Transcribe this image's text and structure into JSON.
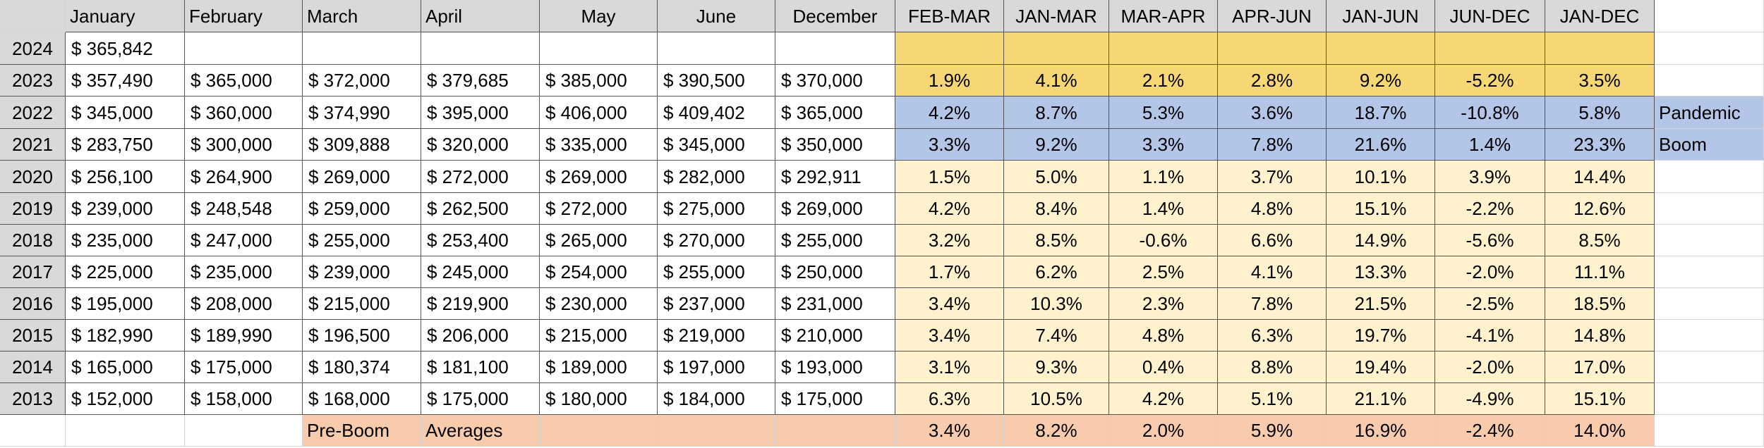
{
  "colors": {
    "header_gray": "#d9d9d9",
    "gold": "#f7d774",
    "blue": "#b4c6e7",
    "light_yellow": "#fff2cc",
    "peach": "#f8cbad"
  },
  "headers": [
    "January",
    "February",
    "March",
    "April",
    "May",
    "June",
    "December",
    "FEB-MAR",
    "JAN-MAR",
    "MAR-APR",
    "APR-JUN",
    "JAN-JUN",
    "JUN-DEC",
    "JAN-DEC"
  ],
  "side_labels": [
    "Pandemic",
    "Boom"
  ],
  "rows": [
    {
      "year": "2024",
      "band": "gold",
      "prices": [
        "$ 365,842",
        "",
        "",
        "",
        "",
        "",
        ""
      ],
      "changes": [
        "",
        "",
        "",
        "",
        "",
        "",
        ""
      ]
    },
    {
      "year": "2023",
      "band": "gold",
      "prices": [
        "$ 357,490",
        "$ 365,000",
        "$ 372,000",
        "$ 379,685",
        "$ 385,000",
        "$ 390,500",
        "$ 370,000"
      ],
      "changes": [
        "1.9%",
        "4.1%",
        "2.1%",
        "2.8%",
        "9.2%",
        "-5.2%",
        "3.5%"
      ]
    },
    {
      "year": "2022",
      "band": "blue",
      "prices": [
        "$ 345,000",
        "$ 360,000",
        "$ 374,990",
        "$ 395,000",
        "$ 406,000",
        "$ 409,402",
        "$ 365,000"
      ],
      "changes": [
        "4.2%",
        "8.7%",
        "5.3%",
        "3.6%",
        "18.7%",
        "-10.8%",
        "5.8%"
      ]
    },
    {
      "year": "2021",
      "band": "blue",
      "prices": [
        "$ 283,750",
        "$ 300,000",
        "$ 309,888",
        "$ 320,000",
        "$ 335,000",
        "$ 345,000",
        "$ 350,000"
      ],
      "changes": [
        "3.3%",
        "9.2%",
        "3.3%",
        "7.8%",
        "21.6%",
        "1.4%",
        "23.3%"
      ]
    },
    {
      "year": "2020",
      "band": "light_yellow",
      "prices": [
        "$ 256,100",
        "$ 264,900",
        "$ 269,000",
        "$ 272,000",
        "$ 269,000",
        "$ 282,000",
        "$ 292,911"
      ],
      "changes": [
        "1.5%",
        "5.0%",
        "1.1%",
        "3.7%",
        "10.1%",
        "3.9%",
        "14.4%"
      ]
    },
    {
      "year": "2019",
      "band": "light_yellow",
      "prices": [
        "$ 239,000",
        "$ 248,548",
        "$ 259,000",
        "$ 262,500",
        "$ 272,000",
        "$ 275,000",
        "$ 269,000"
      ],
      "changes": [
        "4.2%",
        "8.4%",
        "1.4%",
        "4.8%",
        "15.1%",
        "-2.2%",
        "12.6%"
      ]
    },
    {
      "year": "2018",
      "band": "light_yellow",
      "prices": [
        "$ 235,000",
        "$ 247,000",
        "$ 255,000",
        "$ 253,400",
        "$ 265,000",
        "$ 270,000",
        "$ 255,000"
      ],
      "changes": [
        "3.2%",
        "8.5%",
        "-0.6%",
        "6.6%",
        "14.9%",
        "-5.6%",
        "8.5%"
      ]
    },
    {
      "year": "2017",
      "band": "light_yellow",
      "prices": [
        "$ 225,000",
        "$ 235,000",
        "$ 239,000",
        "$ 245,000",
        "$ 254,000",
        "$ 255,000",
        "$ 250,000"
      ],
      "changes": [
        "1.7%",
        "6.2%",
        "2.5%",
        "4.1%",
        "13.3%",
        "-2.0%",
        "11.1%"
      ]
    },
    {
      "year": "2016",
      "band": "light_yellow",
      "prices": [
        "$ 195,000",
        "$ 208,000",
        "$ 215,000",
        "$ 219,900",
        "$ 230,000",
        "$ 237,000",
        "$ 231,000"
      ],
      "changes": [
        "3.4%",
        "10.3%",
        "2.3%",
        "7.8%",
        "21.5%",
        "-2.5%",
        "18.5%"
      ]
    },
    {
      "year": "2015",
      "band": "light_yellow",
      "prices": [
        "$ 182,990",
        "$ 189,990",
        "$ 196,500",
        "$ 206,000",
        "$ 215,000",
        "$ 219,000",
        "$ 210,000"
      ],
      "changes": [
        "3.4%",
        "7.4%",
        "4.8%",
        "6.3%",
        "19.7%",
        "-4.1%",
        "14.8%"
      ]
    },
    {
      "year": "2014",
      "band": "light_yellow",
      "prices": [
        "$ 165,000",
        "$ 175,000",
        "$ 180,374",
        "$ 181,100",
        "$ 189,000",
        "$ 197,000",
        "$ 193,000"
      ],
      "changes": [
        "3.1%",
        "9.3%",
        "0.4%",
        "8.8%",
        "19.4%",
        "-2.0%",
        "17.0%"
      ]
    },
    {
      "year": "2013",
      "band": "light_yellow",
      "prices": [
        "$ 152,000",
        "$ 158,000",
        "$ 168,000",
        "$ 175,000",
        "$ 180,000",
        "$ 184,000",
        "$ 175,000"
      ],
      "changes": [
        "6.3%",
        "10.5%",
        "4.2%",
        "5.1%",
        "21.1%",
        "-4.9%",
        "15.1%"
      ]
    }
  ],
  "averages": {
    "label_1": "Pre-Boom",
    "label_2": "Averages",
    "values": [
      "3.4%",
      "8.2%",
      "2.0%",
      "5.9%",
      "16.9%",
      "-2.4%",
      "14.0%"
    ]
  }
}
